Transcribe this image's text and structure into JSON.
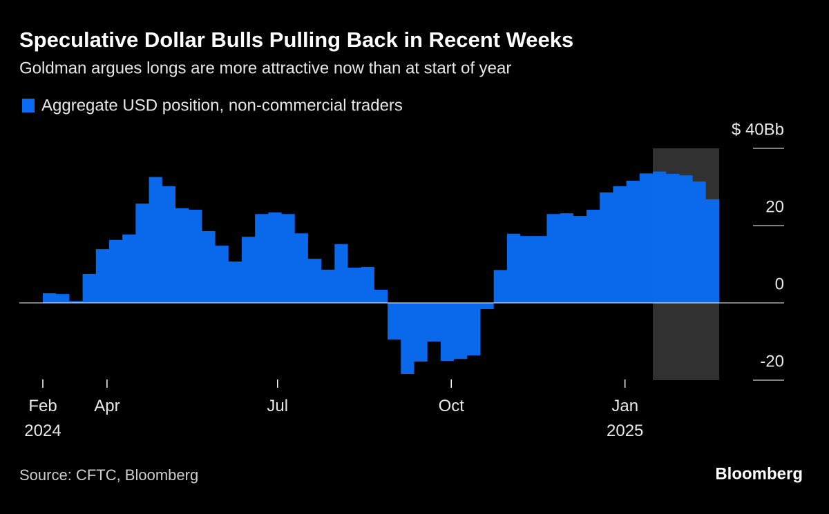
{
  "chart_data": {
    "type": "step-area",
    "title": "Speculative Dollar Bulls Pulling Back in Recent Weeks",
    "subtitle": "Goldman argues longs are more attractive now than at start of year",
    "source": "Source: CFTC, Bloomberg",
    "brand": "Bloomberg",
    "series": [
      {
        "name": "Aggregate USD position, non-commercial traders",
        "color": "#0a6cf2",
        "values": [
          2.5,
          2.3,
          0.5,
          7.5,
          13.9,
          16.3,
          17.7,
          25.7,
          32.6,
          30.2,
          24.5,
          24.1,
          18.6,
          14.8,
          10.7,
          17.1,
          23,
          23.4,
          23,
          18,
          11.4,
          8.6,
          15.2,
          9.1,
          9.3,
          3.4,
          -9.5,
          -18.4,
          -15.2,
          -10,
          -15,
          -14.5,
          -13.6,
          -1.6,
          8.5,
          17.9,
          17.3,
          17.3,
          23,
          23.2,
          22.5,
          24.1,
          28.6,
          30.2,
          31.6,
          33.5,
          34,
          33.4,
          33,
          31.4,
          26.8,
          26.9
        ]
      }
    ],
    "xlim": [
      0,
      51
    ],
    "xticks": [
      {
        "value": 0,
        "label": "Feb 2024"
      },
      {
        "value": 4.84,
        "label": "Apr"
      },
      {
        "value": 17.7,
        "label": "Jul"
      },
      {
        "value": 30.8,
        "label": "Oct"
      },
      {
        "value": 43.9,
        "label": "Jan 2025"
      }
    ],
    "ylim": [
      -20,
      40
    ],
    "yticks": [
      {
        "value": 40,
        "label": "$ 40Bb"
      },
      20,
      0,
      -20
    ],
    "highlight": {
      "x": [
        46,
        51
      ],
      "y": [
        -20,
        40
      ],
      "color": "#3a3a3a"
    }
  }
}
